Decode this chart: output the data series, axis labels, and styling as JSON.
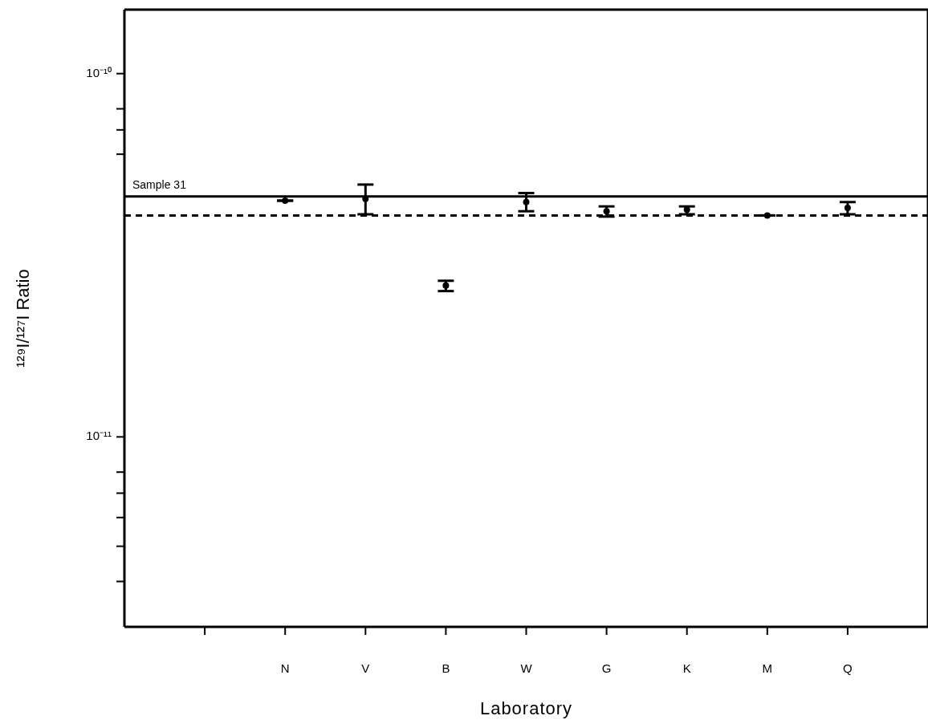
{
  "chart_data": {
    "type": "scatter",
    "xlabel": "Laboratory",
    "ylabel": "¹²⁹I/¹²⁷I Ratio",
    "categories": [
      null,
      "N",
      "V",
      "B",
      "W",
      "G",
      "K",
      "M",
      "Q"
    ],
    "series": [
      {
        "color": "#000000",
        "values": [
          null,
          4.47e-11,
          4.52e-11,
          2.61e-11,
          4.43e-11,
          4.18e-11,
          4.22e-11,
          4.07e-11,
          4.27e-11
        ],
        "errors": [
          null,
          null,
          [
            4.1e-11,
            4.95e-11
          ],
          [
            2.52e-11,
            2.69e-11
          ],
          [
            4.18e-11,
            4.69e-11
          ],
          [
            4.04e-11,
            4.31e-11
          ],
          [
            4.1e-11,
            4.31e-11
          ],
          null,
          [
            4.1e-11,
            4.43e-11
          ]
        ]
      }
    ],
    "log": "y",
    "ylim": [
      3e-12,
      1.5e-10
    ],
    "yticks": [
      {
        "value": 1e-10,
        "label": "10⁻¹⁰"
      },
      {
        "value": 8e-11,
        "label": null
      },
      {
        "value": 7e-11,
        "label": null
      },
      {
        "value": 6e-11,
        "label": null
      },
      {
        "value": 1e-11,
        "label": "10⁻¹¹"
      },
      {
        "value": 8e-12,
        "label": null
      },
      {
        "value": 7e-12,
        "label": null
      },
      {
        "value": 6e-12,
        "label": null
      },
      {
        "value": 5e-12,
        "label": null
      },
      {
        "value": 4e-12,
        "label": null
      }
    ],
    "ref_lines": [
      {
        "axis": "y",
        "value": 4.59e-11,
        "label": "Sample 31",
        "line_style": "solid",
        "color": "#000000"
      },
      {
        "axis": "y",
        "value": 4.07e-11,
        "line_style": "dashed",
        "color": "#000000"
      }
    ],
    "marker": "circle"
  }
}
